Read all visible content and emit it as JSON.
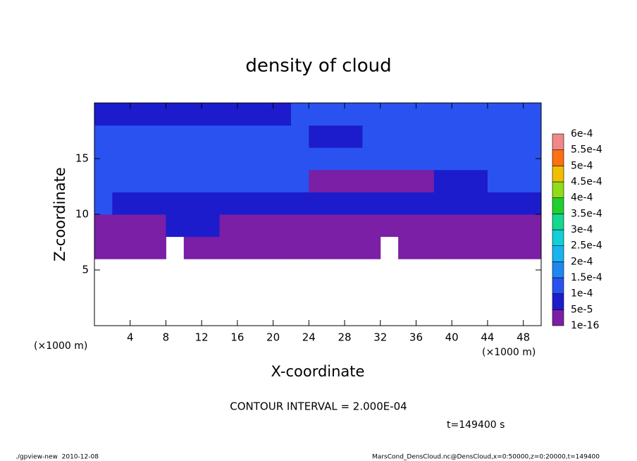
{
  "chart_data": {
    "type": "heatmap",
    "title": "density of cloud",
    "x_label": "X-coordinate",
    "y_label": "Z-coordinate",
    "x_unit": "(×1000 m)",
    "y_unit": "(×1000 m)",
    "xlim": [
      0,
      50
    ],
    "xticks": [
      4,
      8,
      12,
      16,
      20,
      24,
      28,
      32,
      36,
      40,
      44,
      48
    ],
    "ylim": [
      0,
      20
    ],
    "yticks": [
      5,
      10,
      15
    ],
    "x": [
      1,
      3,
      5,
      7,
      9,
      11,
      13,
      15,
      17,
      19,
      21,
      23,
      25,
      27,
      29,
      31,
      33,
      35,
      37,
      39,
      41,
      43,
      45,
      47,
      49
    ],
    "z": [
      1,
      3,
      5,
      7,
      9,
      11,
      13,
      15,
      17,
      19
    ],
    "values": [
      [
        null,
        null,
        null,
        null,
        null,
        null,
        null,
        null,
        null,
        null,
        null,
        null,
        null,
        null,
        null,
        null,
        null,
        null,
        null,
        null,
        null,
        null,
        null,
        null,
        null
      ],
      [
        null,
        null,
        null,
        null,
        null,
        null,
        null,
        null,
        null,
        null,
        null,
        null,
        null,
        null,
        null,
        null,
        null,
        null,
        null,
        null,
        null,
        null,
        null,
        null,
        null
      ],
      [
        null,
        null,
        null,
        null,
        null,
        null,
        null,
        null,
        null,
        null,
        null,
        null,
        null,
        null,
        null,
        null,
        null,
        null,
        null,
        null,
        null,
        null,
        null,
        null,
        null
      ],
      [
        3e-05,
        3e-05,
        3e-05,
        3e-05,
        null,
        3e-05,
        3e-05,
        3e-05,
        3e-05,
        3e-05,
        3e-05,
        3e-05,
        3e-05,
        3e-05,
        3e-05,
        3e-05,
        null,
        3e-05,
        3e-05,
        3e-05,
        3e-05,
        3e-05,
        3e-05,
        3e-05,
        3e-05
      ],
      [
        3e-05,
        3e-05,
        3e-05,
        3e-05,
        7e-05,
        7e-05,
        7e-05,
        3e-05,
        3e-05,
        3e-05,
        3e-05,
        3e-05,
        3e-05,
        3e-05,
        3e-05,
        3e-05,
        3e-05,
        3e-05,
        3e-05,
        3e-05,
        3e-05,
        3e-05,
        3e-05,
        3e-05,
        3e-05
      ],
      [
        0.00012,
        7e-05,
        7e-05,
        7e-05,
        7e-05,
        7e-05,
        7e-05,
        7e-05,
        7e-05,
        7e-05,
        7e-05,
        7e-05,
        7e-05,
        7e-05,
        7e-05,
        7e-05,
        7e-05,
        7e-05,
        7e-05,
        7e-05,
        7e-05,
        7e-05,
        7e-05,
        7e-05,
        7e-05
      ],
      [
        0.00012,
        0.00012,
        0.00012,
        0.00012,
        0.00012,
        0.00012,
        0.00012,
        0.00012,
        0.00012,
        0.00012,
        0.00012,
        0.00012,
        3e-05,
        3e-05,
        3e-05,
        3e-05,
        3e-05,
        3e-05,
        3e-05,
        7e-05,
        7e-05,
        7e-05,
        0.00012,
        0.00012,
        0.00012
      ],
      [
        0.00012,
        0.00012,
        0.00012,
        0.00012,
        0.00012,
        0.00012,
        0.00012,
        0.00012,
        0.00012,
        0.00012,
        0.00012,
        0.00012,
        0.00012,
        0.00012,
        0.00012,
        0.00012,
        0.00012,
        0.00012,
        0.00012,
        0.00012,
        0.00012,
        0.00012,
        0.00012,
        0.00012,
        0.00012
      ],
      [
        0.00012,
        0.00012,
        0.00012,
        0.00012,
        0.00012,
        0.00012,
        0.00012,
        0.00012,
        0.00012,
        0.00012,
        0.00012,
        0.00012,
        7e-05,
        7e-05,
        7e-05,
        0.00012,
        0.00012,
        0.00012,
        0.00012,
        0.00012,
        0.00012,
        0.00012,
        0.00012,
        0.00012,
        0.00012
      ],
      [
        7e-05,
        7e-05,
        7e-05,
        7e-05,
        7e-05,
        7e-05,
        7e-05,
        7e-05,
        7e-05,
        7e-05,
        7e-05,
        0.00012,
        0.00012,
        0.00012,
        0.00012,
        0.00012,
        0.00012,
        0.00012,
        0.00012,
        0.00012,
        0.00012,
        0.00012,
        0.00012,
        0.00012,
        0.00012
      ]
    ],
    "colorbar_ticks": [
      {
        "value": 1e-16,
        "label": "1e-16"
      },
      {
        "value": 5e-05,
        "label": "5e-5"
      },
      {
        "value": 0.0001,
        "label": "1e-4"
      },
      {
        "value": 0.00015,
        "label": "1.5e-4"
      },
      {
        "value": 0.0002,
        "label": "2e-4"
      },
      {
        "value": 0.00025,
        "label": "2.5e-4"
      },
      {
        "value": 0.0003,
        "label": "3e-4"
      },
      {
        "value": 0.00035,
        "label": "3.5e-4"
      },
      {
        "value": 0.0004,
        "label": "4e-4"
      },
      {
        "value": 0.00045,
        "label": "4.5e-4"
      },
      {
        "value": 0.0005,
        "label": "5e-4"
      },
      {
        "value": 0.00055,
        "label": "5.5e-4"
      },
      {
        "value": 0.0006,
        "label": "6e-4"
      }
    ],
    "colors": [
      "#7a1fa6",
      "#1c1ccc",
      "#2a52f0",
      "#1e88f0",
      "#18b4f0",
      "#10d0d8",
      "#12d890",
      "#20d030",
      "#90dc18",
      "#f0c000",
      "#ff7010",
      "#f02020"
    ],
    "top_color": "#f08888",
    "annotation": "CONTOUR INTERVAL = 2.000E-04",
    "time_label": "t=149400 s",
    "footer_left": "./gpview-new  2010-12-08",
    "footer_right": "MarsCond_DensCloud.nc@DensCloud,x=0:50000,z=0:20000,t=149400"
  }
}
